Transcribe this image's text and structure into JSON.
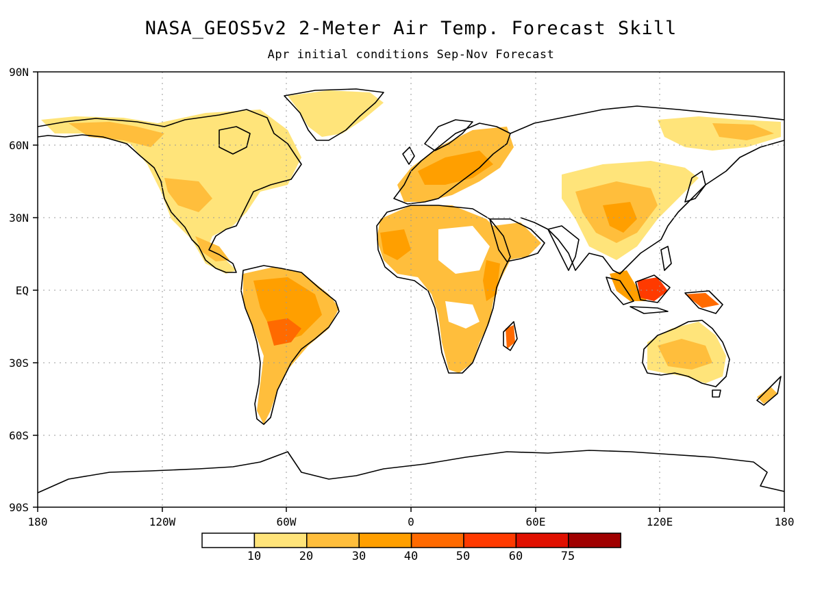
{
  "title": "NASA_GEOS5v2 2-Meter Air Temp. Forecast Skill",
  "subtitle": "Apr initial conditions   Sep-Nov Forecast",
  "axes": {
    "x_ticks": [
      "180",
      "120W",
      "60W",
      "0",
      "60E",
      "120E",
      "180"
    ],
    "y_ticks": [
      "90N",
      "60N",
      "30N",
      "EQ",
      "30S",
      "60S",
      "90S"
    ]
  },
  "colorbar": {
    "labels": [
      "10",
      "20",
      "30",
      "40",
      "50",
      "60",
      "75"
    ],
    "colors": [
      "#ffffff",
      "#ffe47a",
      "#ffbe3c",
      "#ff9f00",
      "#ff6a00",
      "#ff3a00",
      "#e01000",
      "#a00000"
    ]
  },
  "colors": {
    "land_outline": "#000000",
    "grid": "#999999"
  }
}
